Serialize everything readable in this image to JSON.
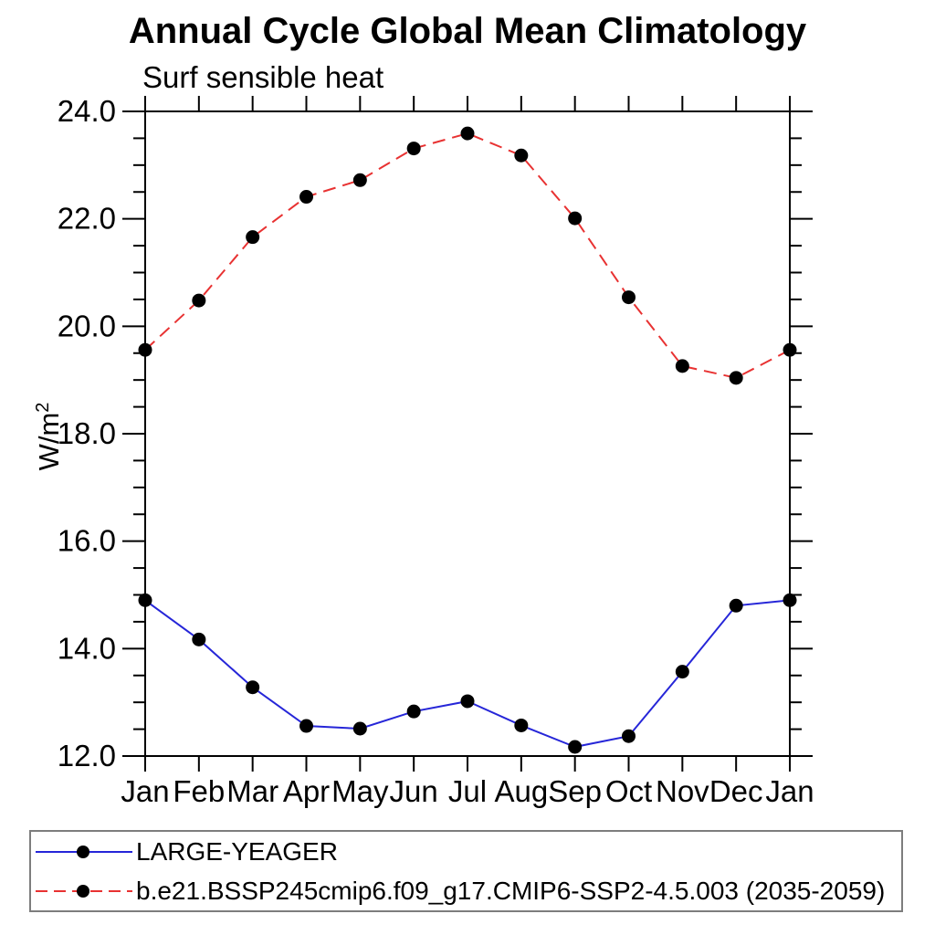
{
  "chart_data": {
    "type": "line",
    "title": "Annual Cycle Global Mean Climatology",
    "subtitle": "Surf sensible heat",
    "ylabel_base": "W/m",
    "ylabel_exponent": "2",
    "categories": [
      "Jan",
      "Feb",
      "Mar",
      "Apr",
      "May",
      "Jun",
      "Jul",
      "Aug",
      "Sep",
      "Oct",
      "Nov",
      "Dec",
      "Jan"
    ],
    "ylim": [
      12.0,
      24.0
    ],
    "ytick_major": 2.0,
    "ytick_minor": 0.5,
    "ytick_labels": [
      "12.0",
      "14.0",
      "16.0",
      "18.0",
      "20.0",
      "22.0",
      "24.0"
    ],
    "grid": false,
    "legend_position": "bottom",
    "axis_color": "#000000",
    "marker_shape": "filled-circle",
    "series": [
      {
        "name": "LARGE-YEAGER",
        "color": "#2626d8",
        "line_style": "solid",
        "marker_color": "#000000",
        "values": [
          14.9,
          14.17,
          13.28,
          12.56,
          12.51,
          12.83,
          13.02,
          12.57,
          12.17,
          12.37,
          13.57,
          14.8,
          14.9
        ]
      },
      {
        "name": "b.e21.BSSP245cmip6.f09_g17.CMIP6-SSP2-4.5.003 (2035-2059)",
        "color": "#e83232",
        "line_style": "dashed",
        "marker_color": "#000000",
        "values": [
          19.56,
          20.48,
          21.66,
          22.41,
          22.72,
          23.31,
          23.59,
          23.18,
          22.01,
          20.54,
          19.26,
          19.04,
          19.56
        ]
      }
    ]
  }
}
